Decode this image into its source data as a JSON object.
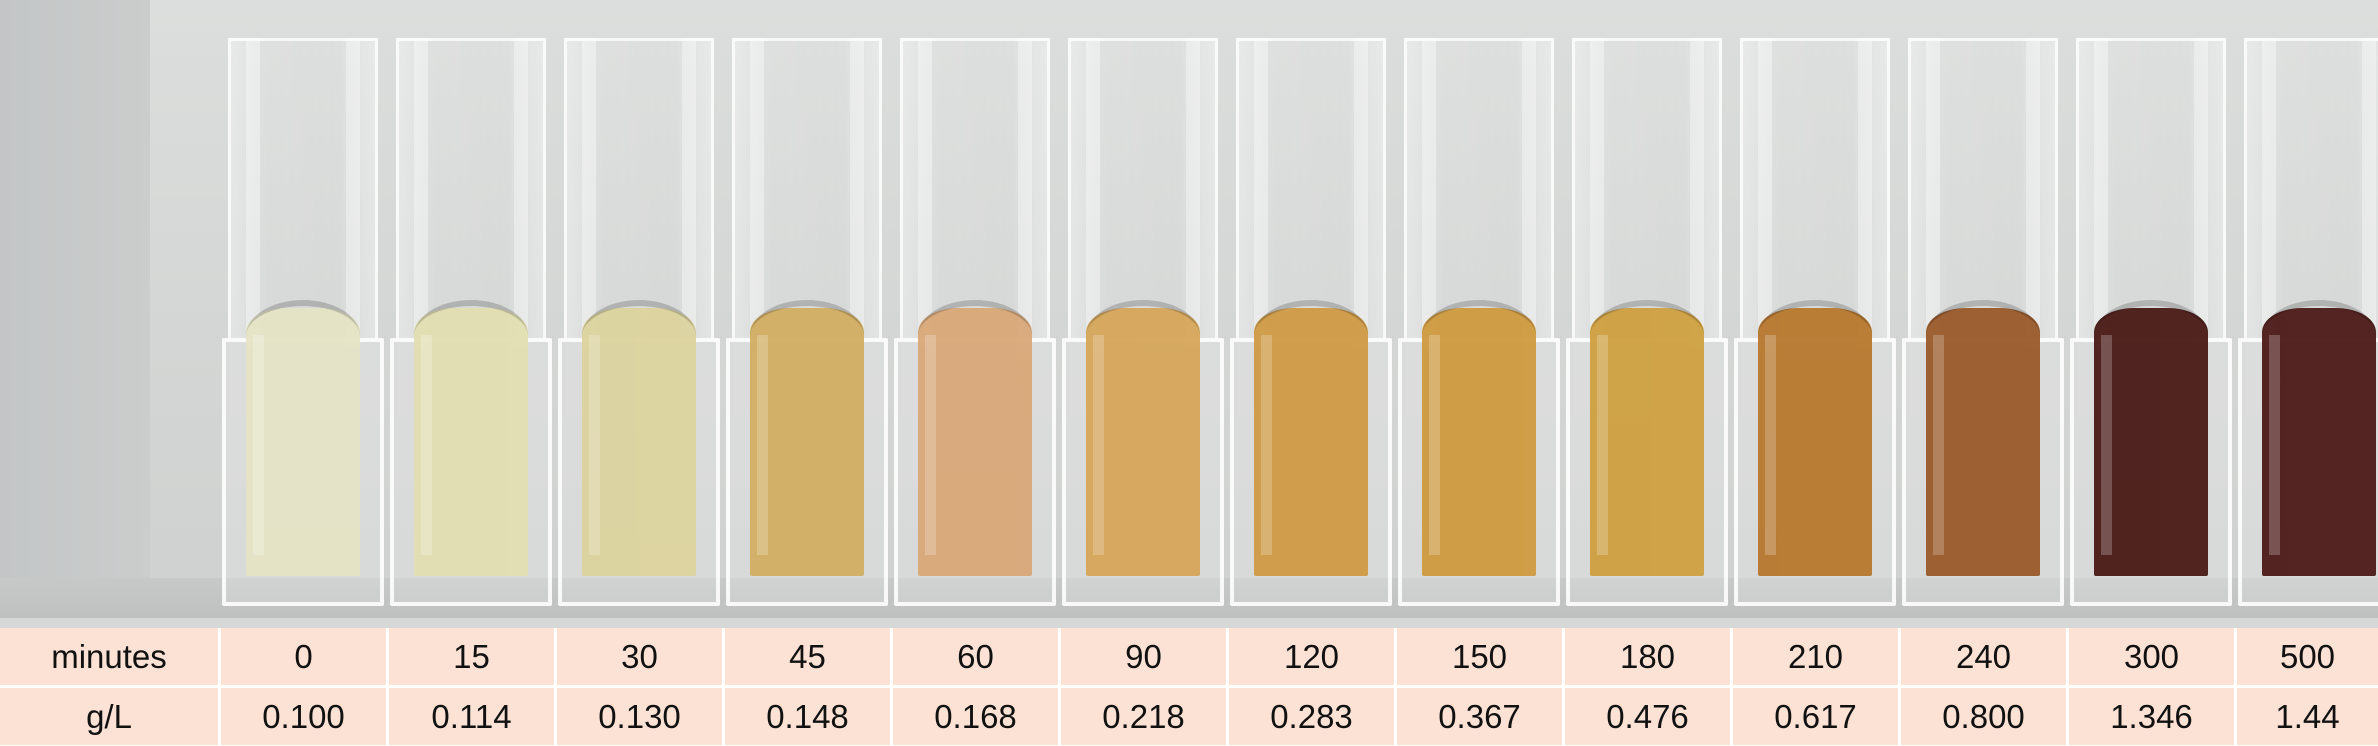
{
  "photo": {
    "subject": "cuvettes",
    "samples": [
      {
        "color": "#e6e4c6"
      },
      {
        "color": "#e2dfb2"
      },
      {
        "color": "#dcd39e"
      },
      {
        "color": "#d2ae62"
      },
      {
        "color": "#d9a878"
      },
      {
        "color": "#d6a65a"
      },
      {
        "color": "#cf9a45"
      },
      {
        "color": "#d09a40"
      },
      {
        "color": "#cfa040"
      },
      {
        "color": "#b8782e"
      },
      {
        "color": "#9a5a2a"
      },
      {
        "color": "#4a1a16"
      },
      {
        "color": "#4c1a18"
      }
    ]
  },
  "table": {
    "row1_label": "minutes",
    "row2_label": "g/L",
    "minutes": [
      "0",
      "15",
      "30",
      "45",
      "60",
      "90",
      "120",
      "150",
      "180",
      "210",
      "240",
      "300",
      "500"
    ],
    "concentration": [
      "0.100",
      "0.114",
      "0.130",
      "0.148",
      "0.168",
      "0.218",
      "0.283",
      "0.367",
      "0.476",
      "0.617",
      "0.800",
      "1.346",
      "1.44"
    ]
  }
}
